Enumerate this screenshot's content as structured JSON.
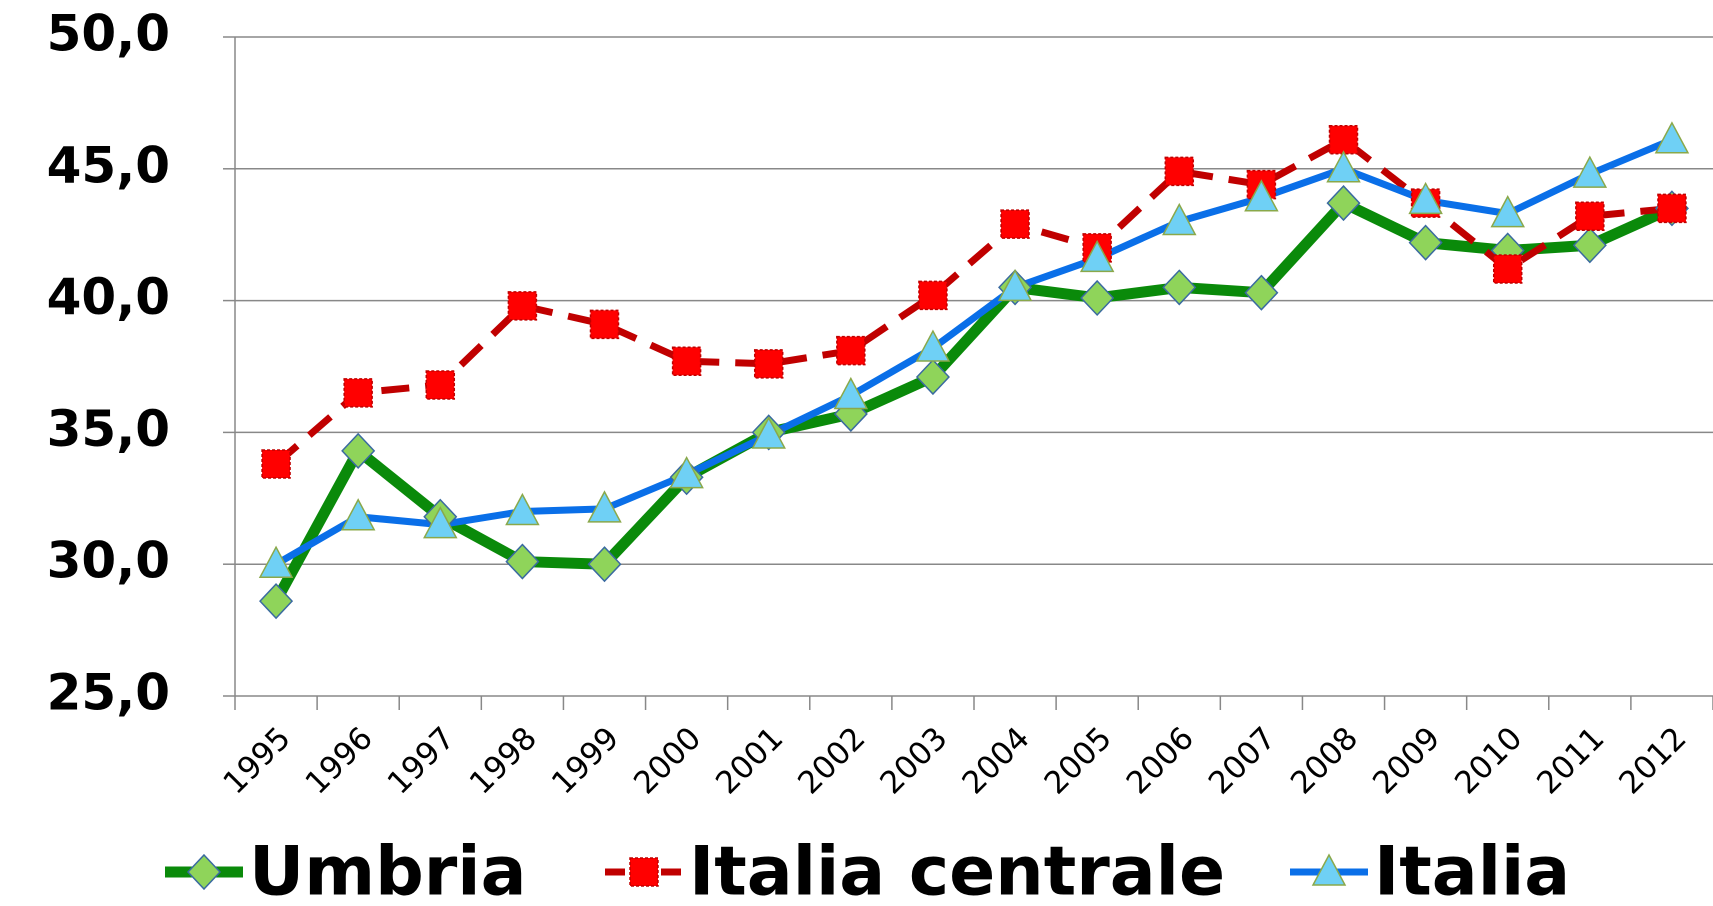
{
  "chart_data": {
    "type": "line",
    "categories": [
      "1995",
      "1996",
      "1997",
      "1998",
      "1999",
      "2000",
      "2001",
      "2002",
      "2003",
      "2004",
      "2005",
      "2006",
      "2007",
      "2008",
      "2009",
      "2010",
      "2011",
      "2012"
    ],
    "series": [
      {
        "name": "Umbria",
        "color": "#0a8a0a",
        "marker": "diamond",
        "marker_color": "#8fd45a",
        "dash": false,
        "values": [
          28.6,
          34.3,
          31.8,
          30.1,
          30.0,
          33.3,
          35.0,
          35.7,
          37.1,
          40.5,
          40.1,
          40.5,
          40.3,
          43.7,
          42.2,
          41.9,
          42.1,
          43.5
        ]
      },
      {
        "name": "Italia centrale",
        "color": "#c00000",
        "marker": "square",
        "marker_color": "#ff0000",
        "dash": true,
        "values": [
          33.8,
          36.5,
          36.8,
          39.8,
          39.1,
          37.7,
          37.6,
          38.1,
          40.2,
          42.9,
          42.0,
          44.9,
          44.4,
          46.1,
          43.7,
          41.2,
          43.2,
          43.5
        ]
      },
      {
        "name": "Italia",
        "color": "#0a6fe8",
        "marker": "triangle",
        "marker_color": "#6fd0f5",
        "dash": false,
        "values": [
          30.0,
          31.8,
          31.5,
          32.0,
          32.1,
          33.4,
          34.9,
          36.4,
          38.2,
          40.5,
          41.6,
          43.0,
          43.9,
          45.0,
          43.8,
          43.3,
          44.8,
          46.1
        ]
      }
    ],
    "ylim": [
      25,
      50
    ],
    "yticks": [
      {
        "value": 25,
        "label": "25,0"
      },
      {
        "value": 30,
        "label": "30,0"
      },
      {
        "value": 35,
        "label": "35,0"
      },
      {
        "value": 40,
        "label": "40,0"
      },
      {
        "value": 45,
        "label": "45,0"
      },
      {
        "value": 50,
        "label": "50,0"
      }
    ],
    "grid": true,
    "legend": "bottom"
  }
}
